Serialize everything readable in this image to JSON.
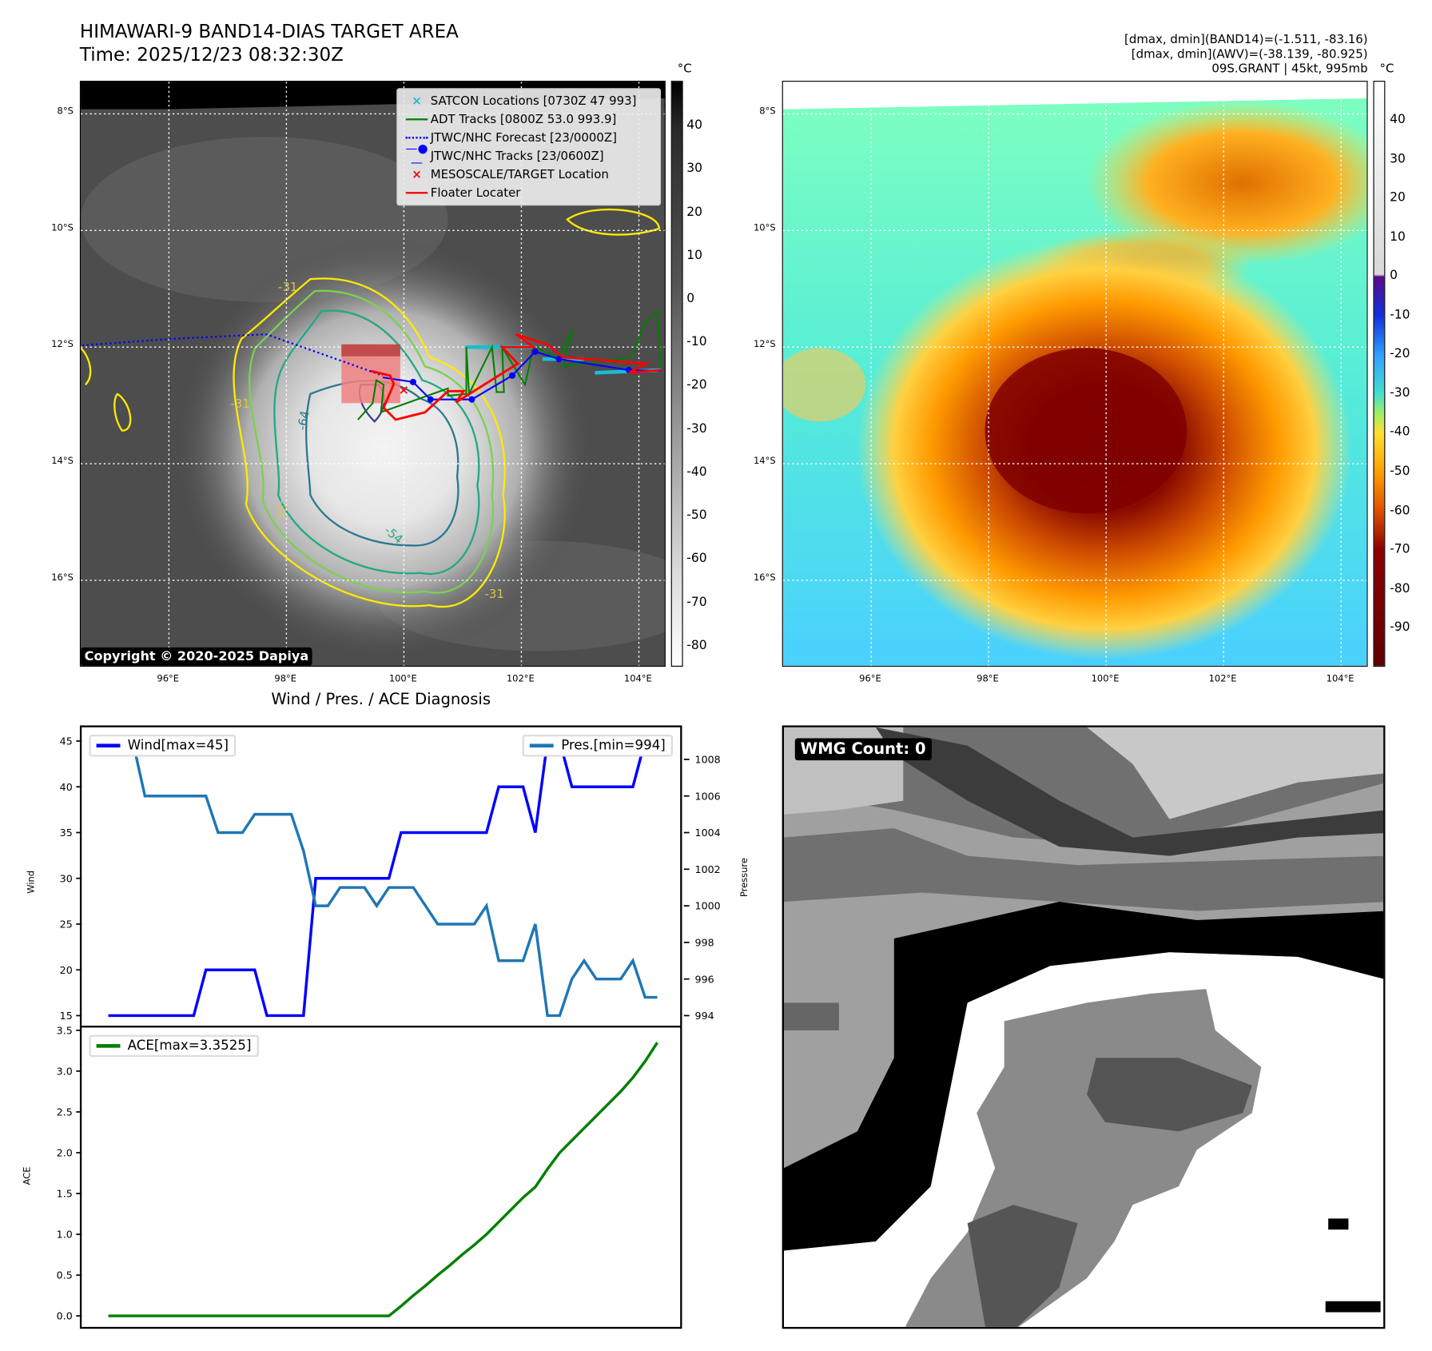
{
  "header": {
    "title_line1": "HIMAWARI-9 BAND14-DIAS TARGET AREA",
    "title_line2": "Time: 2025/12/23 08:32:30Z",
    "info_line1": "[dmax, dmin](BAND14)=(-1.511, -83.16)",
    "info_line2": "[dmax, dmin](AWV)=(-38.139, -80.925)",
    "info_line3": "09S.GRANT | 45kt, 995mb"
  },
  "map_axes": {
    "lat_labels": [
      "8°S",
      "10°S",
      "12°S",
      "14°S",
      "16°S"
    ],
    "lon_labels": [
      "96°E",
      "98°E",
      "100°E",
      "102°E",
      "104°E"
    ],
    "contour_labels": [
      "-31",
      "-31",
      "-31",
      "-31",
      "-64",
      "-54"
    ]
  },
  "left_map": {
    "legend": [
      {
        "label": "SATCON Locations [0730Z 47 993]",
        "color": "#17becf",
        "symbol": "x-marker"
      },
      {
        "label": "ADT Tracks [0800Z 53.0 993.9]",
        "color": "#008000",
        "symbol": "line"
      },
      {
        "label": "JTWC/NHC Forecast [23/0000Z]",
        "color": "#0000ff",
        "symbol": "dotted-line"
      },
      {
        "label": "JTWC/NHC Tracks [23/0600Z]",
        "color": "#0000ff",
        "symbol": "line-dot"
      },
      {
        "label": "MESOSCALE/TARGET Location",
        "color": "#ff0000",
        "symbol": "x-marker"
      },
      {
        "label": "Floater Locater",
        "color": "#ff0000",
        "symbol": "line"
      }
    ],
    "copyright": "Copyright © 2020-2025 Dapiya",
    "colorbar": {
      "unit": "°C",
      "ticks": [
        "40",
        "30",
        "20",
        "10",
        "0",
        "-10",
        "-20",
        "-30",
        "-40",
        "-50",
        "-60",
        "-70",
        "-80"
      ],
      "range": [
        50.4,
        -84.7
      ]
    }
  },
  "right_map": {
    "colorbar": {
      "unit": "°C",
      "ticks": [
        "40",
        "30",
        "20",
        "10",
        "0",
        "-10",
        "-20",
        "-30",
        "-40",
        "-50",
        "-60",
        "-70",
        "-80",
        "-90"
      ],
      "range": [
        50.1,
        -99.8
      ]
    }
  },
  "wmg": {
    "label": "WMG Count: 0"
  },
  "chart_data": [
    {
      "type": "line",
      "title": "Wind / Pres. / ACE Diagnosis",
      "ylabel": "Wind",
      "y2label": "Pressure",
      "x": [
        0,
        1,
        2,
        3,
        4,
        5,
        6,
        7,
        8,
        9,
        10,
        11,
        12,
        13,
        14,
        15,
        16,
        17,
        18,
        19,
        20,
        21,
        22,
        23,
        24,
        25,
        26,
        27,
        28,
        29,
        30,
        31,
        32,
        33,
        34,
        35,
        36,
        37,
        38,
        39,
        40,
        41,
        42,
        43,
        44,
        45
      ],
      "ylim": [
        15,
        45
      ],
      "y2lim": [
        994,
        1008
      ],
      "yticks": [
        "15",
        "20",
        "25",
        "30",
        "35",
        "40",
        "45"
      ],
      "y2ticks": [
        "994",
        "996",
        "998",
        "1000",
        "1002",
        "1004",
        "1006",
        "1008"
      ],
      "series": [
        {
          "name": "Wind[max=45]",
          "color": "#0000ff",
          "axis": "left",
          "values": [
            15,
            15,
            15,
            15,
            15,
            15,
            15,
            15,
            20,
            20,
            20,
            20,
            20,
            15,
            15,
            15,
            15,
            30,
            30,
            30,
            30,
            30,
            30,
            30,
            35,
            35,
            35,
            35,
            35,
            35,
            35,
            35,
            40,
            40,
            40,
            35,
            45,
            45,
            40,
            40,
            40,
            40,
            40,
            40,
            45,
            45
          ]
        },
        {
          "name": "Pres.[min=994]",
          "color": "#1f77b4",
          "axis": "right",
          "values": [
            1009,
            1009,
            1009,
            1006,
            1006,
            1006,
            1006,
            1006,
            1006,
            1004,
            1004,
            1004,
            1005,
            1005,
            1005,
            1005,
            1003,
            1000,
            1000,
            1001,
            1001,
            1001,
            1000,
            1001,
            1001,
            1001,
            1000,
            999,
            999,
            999,
            999,
            1000,
            997,
            997,
            997,
            999,
            994,
            994,
            996,
            997,
            996,
            996,
            996,
            997,
            995,
            995
          ]
        }
      ]
    },
    {
      "type": "line",
      "ylabel": "ACE",
      "ylim": [
        0,
        3.5
      ],
      "yticks": [
        "0.0",
        "0.5",
        "1.0",
        "1.5",
        "2.0",
        "2.5",
        "3.0",
        "3.5"
      ],
      "series": [
        {
          "name": "ACE[max=3.3525]",
          "color": "#008000",
          "values": [
            0,
            0,
            0,
            0,
            0,
            0,
            0,
            0,
            0,
            0,
            0,
            0,
            0,
            0,
            0,
            0,
            0,
            0,
            0,
            0,
            0,
            0,
            0,
            0,
            0.12,
            0.25,
            0.37,
            0.5,
            0.62,
            0.75,
            0.87,
            1.0,
            1.15,
            1.3,
            1.45,
            1.58,
            1.8,
            2.0,
            2.15,
            2.3,
            2.45,
            2.6,
            2.75,
            2.92,
            3.12,
            3.35
          ]
        }
      ]
    }
  ]
}
